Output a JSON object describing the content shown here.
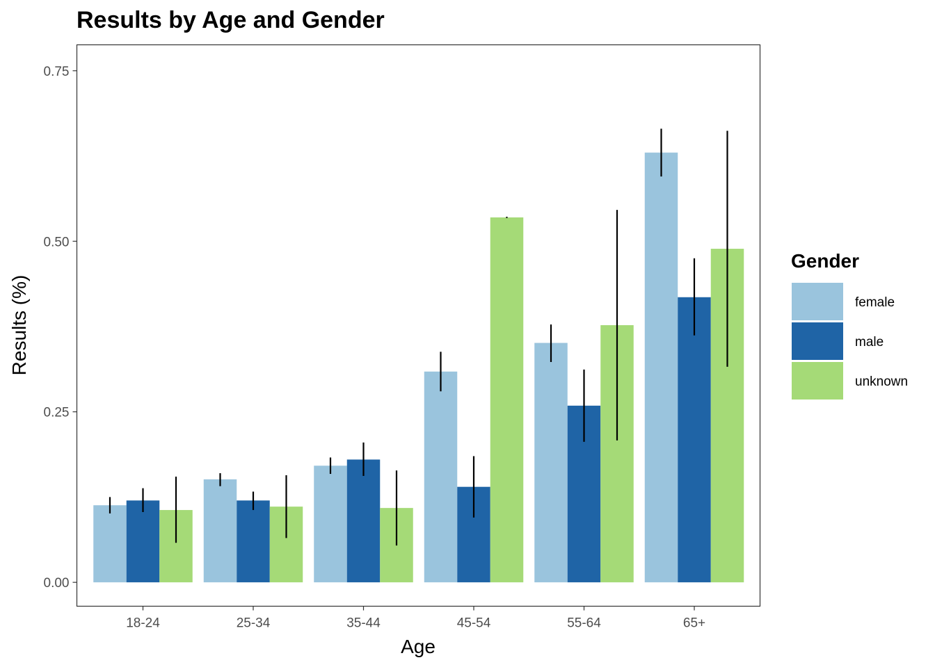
{
  "chart_data": {
    "type": "bar",
    "title": "Results by Age and Gender",
    "xlabel": "Age",
    "ylabel": "Results (%)",
    "categories": [
      "18-24",
      "25-34",
      "35-44",
      "45-54",
      "55-64",
      "65+"
    ],
    "series": [
      {
        "name": "female",
        "color": "#9ac4dd",
        "values": [
          0.113,
          0.151,
          0.171,
          0.309,
          0.351,
          0.63
        ],
        "error_low": [
          0.101,
          0.141,
          0.159,
          0.28,
          0.323,
          0.595
        ],
        "error_high": [
          0.125,
          0.16,
          0.183,
          0.338,
          0.378,
          0.665
        ]
      },
      {
        "name": "male",
        "color": "#1f64a6",
        "values": [
          0.12,
          0.12,
          0.18,
          0.14,
          0.259,
          0.418
        ],
        "error_low": [
          0.103,
          0.106,
          0.156,
          0.095,
          0.206,
          0.362
        ],
        "error_high": [
          0.138,
          0.133,
          0.205,
          0.185,
          0.312,
          0.475
        ]
      },
      {
        "name": "unknown",
        "color": "#a5da77",
        "values": [
          0.106,
          0.111,
          0.109,
          0.535,
          0.377,
          0.489
        ],
        "error_low": [
          0.058,
          0.065,
          0.054,
          0.535,
          0.208,
          0.316
        ],
        "error_high": [
          0.155,
          0.157,
          0.164,
          0.535,
          0.546,
          0.662
        ]
      }
    ],
    "ylim": [
      -0.035,
      0.788
    ],
    "yticks": [
      0.0,
      0.25,
      0.5,
      0.75
    ],
    "ytick_labels": [
      "0.00",
      "0.25",
      "0.50",
      "0.75"
    ],
    "legend": {
      "title": "Gender",
      "position": "right"
    },
    "grid": false
  }
}
